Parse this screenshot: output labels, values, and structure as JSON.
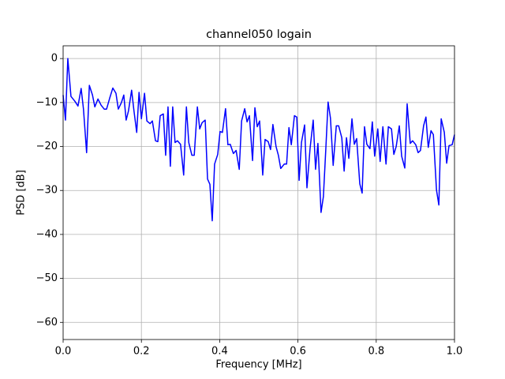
{
  "chart_data": {
    "type": "line",
    "title": "channel050 logain",
    "x_label": "Frequency [MHz]",
    "y_label": "PSD [dB]",
    "x": [
      0,
      0.006,
      0.012,
      0.02,
      0.03,
      0.038,
      0.046,
      0.052,
      0.06,
      0.067,
      0.075,
      0.081,
      0.089,
      0.097,
      0.105,
      0.111,
      0.119,
      0.127,
      0.135,
      0.141,
      0.149,
      0.155,
      0.161,
      0.167,
      0.175,
      0.181,
      0.188,
      0.194,
      0.2,
      0.208,
      0.214,
      0.222,
      0.228,
      0.236,
      0.242,
      0.248,
      0.256,
      0.262,
      0.268,
      0.274,
      0.28,
      0.286,
      0.292,
      0.3,
      0.308,
      0.315,
      0.321,
      0.329,
      0.335,
      0.343,
      0.349,
      0.355,
      0.363,
      0.369,
      0.375,
      0.381,
      0.387,
      0.395,
      0.401,
      0.407,
      0.415,
      0.421,
      0.427,
      0.435,
      0.442,
      0.45,
      0.456,
      0.464,
      0.47,
      0.476,
      0.484,
      0.49,
      0.496,
      0.502,
      0.51,
      0.516,
      0.524,
      0.53,
      0.536,
      0.544,
      0.55,
      0.556,
      0.565,
      0.571,
      0.577,
      0.583,
      0.591,
      0.597,
      0.603,
      0.609,
      0.617,
      0.623,
      0.631,
      0.639,
      0.645,
      0.651,
      0.659,
      0.665,
      0.671,
      0.677,
      0.683,
      0.69,
      0.698,
      0.704,
      0.712,
      0.718,
      0.724,
      0.73,
      0.738,
      0.744,
      0.75,
      0.758,
      0.764,
      0.77,
      0.776,
      0.784,
      0.79,
      0.796,
      0.804,
      0.81,
      0.817,
      0.825,
      0.831,
      0.839,
      0.845,
      0.851,
      0.859,
      0.865,
      0.873,
      0.879,
      0.887,
      0.893,
      0.901,
      0.907,
      0.913,
      0.921,
      0.927,
      0.933,
      0.94,
      0.946,
      0.954,
      0.96,
      0.966,
      0.974,
      0.98,
      0.986,
      0.994,
      1.0
    ],
    "series": [
      {
        "name": "channel050",
        "color": "#0000ff",
        "values": [
          -8.3,
          -14,
          0,
          -8.6,
          -9.7,
          -10.8,
          -6.8,
          -11.5,
          -21.4,
          -6.1,
          -8.3,
          -11,
          -9.2,
          -10.6,
          -11.5,
          -11.5,
          -9,
          -6.7,
          -7.9,
          -11.5,
          -10,
          -8.3,
          -14,
          -11.9,
          -7.2,
          -11.9,
          -16.8,
          -7.7,
          -13.7,
          -7.9,
          -14.2,
          -14.8,
          -14.2,
          -18.7,
          -18.9,
          -13,
          -12.6,
          -22,
          -11,
          -24.5,
          -11,
          -19.1,
          -18.7,
          -19.5,
          -26.5,
          -11,
          -19.1,
          -22,
          -22,
          -11,
          -16,
          -14.6,
          -14,
          -27.4,
          -28.6,
          -36.9,
          -24,
          -21.8,
          -16.6,
          -16.8,
          -11.4,
          -19.6,
          -19.5,
          -21.6,
          -20.9,
          -25.2,
          -14.2,
          -11.4,
          -14.4,
          -13,
          -23.2,
          -11.2,
          -15.5,
          -14.2,
          -26.5,
          -18.4,
          -18.9,
          -20.7,
          -15,
          -20,
          -22,
          -25,
          -24,
          -24,
          -15.7,
          -19.6,
          -13,
          -13.3,
          -27.7,
          -19.1,
          -15.1,
          -29.4,
          -20.4,
          -14,
          -25.2,
          -19.3,
          -35,
          -31.4,
          -20.9,
          -9.9,
          -13.5,
          -24.3,
          -15.3,
          -15.3,
          -18,
          -25.6,
          -18,
          -22.7,
          -13.7,
          -19.5,
          -18.2,
          -28.5,
          -30.6,
          -15.5,
          -19.5,
          -20.5,
          -14.4,
          -22.2,
          -16,
          -23.4,
          -15.5,
          -24,
          -15.5,
          -16,
          -21.8,
          -20,
          -15.3,
          -22.2,
          -24.9,
          -10.3,
          -19.3,
          -18.7,
          -19.6,
          -21.4,
          -20.9,
          -15.3,
          -13.3,
          -20.2,
          -16.4,
          -17.3,
          -29.9,
          -33.3,
          -13.7,
          -16.8,
          -23.8,
          -19.8,
          -19.6,
          -17.3
        ]
      }
    ],
    "xlim": [
      0,
      1.0
    ],
    "ylim": [
      -63.9,
      2.9
    ],
    "xticks": [
      {
        "value": 0,
        "label": "0.0"
      },
      0.2,
      0.4,
      0.6,
      0.8,
      {
        "value": 1,
        "label": "1.0"
      }
    ],
    "yticks": [
      {
        "value": -60,
        "label": "−60"
      },
      {
        "value": -50,
        "label": "−50"
      },
      {
        "value": -40,
        "label": "−40"
      },
      {
        "value": -30,
        "label": "−30"
      },
      {
        "value": -20,
        "label": "−20"
      },
      {
        "value": -10,
        "label": "−10"
      },
      0
    ],
    "grid": true
  }
}
